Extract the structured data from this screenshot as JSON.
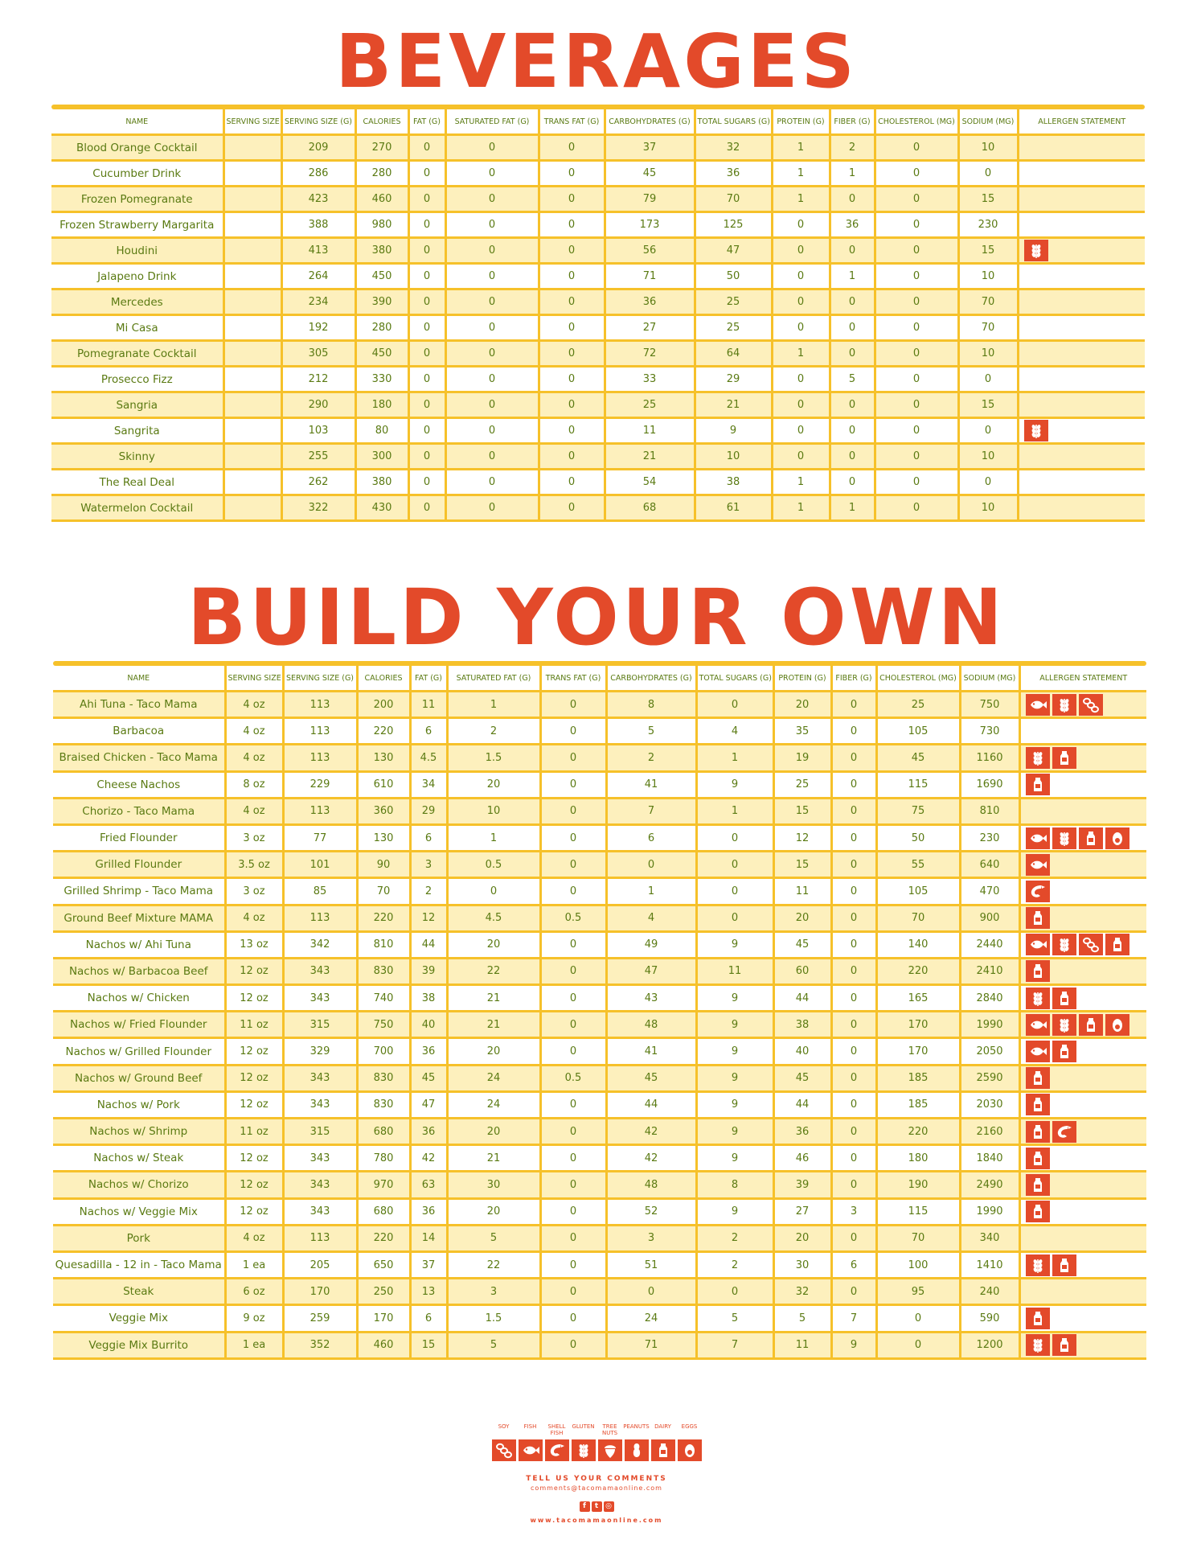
{
  "beverages": {
    "title": "BEVERAGES",
    "headers": [
      "NAME",
      "SERVING SIZE",
      "SERVING SIZE (g)",
      "CALORIES",
      "FAT (g)",
      "SATURATED FAT (g)",
      "TRANS FAT (g)",
      "CARBOHYDRATES (g)",
      "TOTAL SUGARS (g)",
      "PROTEIN (g)",
      "FIBER (g)",
      "CHOLESTEROL (mg)",
      "SODIUM (mg)",
      "ALLERGEN STATEMENT"
    ],
    "rows": [
      {
        "cells": [
          "Blood Orange Cocktail",
          "",
          "209",
          "270",
          "0",
          "0",
          "0",
          "37",
          "32",
          "1",
          "2",
          "0",
          "10"
        ],
        "allergens": []
      },
      {
        "cells": [
          "Cucumber Drink",
          "",
          "286",
          "280",
          "0",
          "0",
          "0",
          "45",
          "36",
          "1",
          "1",
          "0",
          "0"
        ],
        "allergens": []
      },
      {
        "cells": [
          "Frozen Pomegranate",
          "",
          "423",
          "460",
          "0",
          "0",
          "0",
          "79",
          "70",
          "1",
          "0",
          "0",
          "15"
        ],
        "allergens": []
      },
      {
        "cells": [
          "Frozen Strawberry Margarita",
          "",
          "388",
          "980",
          "0",
          "0",
          "0",
          "173",
          "125",
          "0",
          "36",
          "0",
          "230"
        ],
        "allergens": []
      },
      {
        "cells": [
          "Houdini",
          "",
          "413",
          "380",
          "0",
          "0",
          "0",
          "56",
          "47",
          "0",
          "0",
          "0",
          "15"
        ],
        "allergens": [
          "gluten"
        ]
      },
      {
        "cells": [
          "Jalapeno Drink",
          "",
          "264",
          "450",
          "0",
          "0",
          "0",
          "71",
          "50",
          "0",
          "1",
          "0",
          "10"
        ],
        "allergens": []
      },
      {
        "cells": [
          "Mercedes",
          "",
          "234",
          "390",
          "0",
          "0",
          "0",
          "36",
          "25",
          "0",
          "0",
          "0",
          "70"
        ],
        "allergens": []
      },
      {
        "cells": [
          "Mi Casa",
          "",
          "192",
          "280",
          "0",
          "0",
          "0",
          "27",
          "25",
          "0",
          "0",
          "0",
          "70"
        ],
        "allergens": []
      },
      {
        "cells": [
          "Pomegranate Cocktail",
          "",
          "305",
          "450",
          "0",
          "0",
          "0",
          "72",
          "64",
          "1",
          "0",
          "0",
          "10"
        ],
        "allergens": []
      },
      {
        "cells": [
          "Prosecco Fizz",
          "",
          "212",
          "330",
          "0",
          "0",
          "0",
          "33",
          "29",
          "0",
          "5",
          "0",
          "0"
        ],
        "allergens": []
      },
      {
        "cells": [
          "Sangria",
          "",
          "290",
          "180",
          "0",
          "0",
          "0",
          "25",
          "21",
          "0",
          "0",
          "0",
          "15"
        ],
        "allergens": []
      },
      {
        "cells": [
          "Sangrita",
          "",
          "103",
          "80",
          "0",
          "0",
          "0",
          "11",
          "9",
          "0",
          "0",
          "0",
          "0"
        ],
        "allergens": [
          "gluten"
        ]
      },
      {
        "cells": [
          "Skinny",
          "",
          "255",
          "300",
          "0",
          "0",
          "0",
          "21",
          "10",
          "0",
          "0",
          "0",
          "10"
        ],
        "allergens": []
      },
      {
        "cells": [
          "The Real Deal",
          "",
          "262",
          "380",
          "0",
          "0",
          "0",
          "54",
          "38",
          "1",
          "0",
          "0",
          "0"
        ],
        "allergens": []
      },
      {
        "cells": [
          "Watermelon Cocktail",
          "",
          "322",
          "430",
          "0",
          "0",
          "0",
          "68",
          "61",
          "1",
          "1",
          "0",
          "10"
        ],
        "allergens": []
      }
    ]
  },
  "build_your_own": {
    "title": "BUILD YOUR OWN",
    "headers": [
      "NAME",
      "SERVING SIZE",
      "SERVING SIZE (g)",
      "CALORIES",
      "FAT (g)",
      "SATURATED FAT (g)",
      "TRANS FAT (g)",
      "CARBOHYDRATES (g)",
      "TOTAL SUGARS (g)",
      "PROTEIN (g)",
      "FIBER (g)",
      "CHOLESTEROL (mg)",
      "SODIUM (mg)",
      "ALLERGEN STATEMENT"
    ],
    "rows": [
      {
        "cells": [
          "Ahi Tuna - Taco Mama",
          "4 oz",
          "113",
          "200",
          "11",
          "1",
          "0",
          "8",
          "0",
          "20",
          "0",
          "25",
          "750"
        ],
        "allergens": [
          "fish",
          "gluten",
          "soy"
        ]
      },
      {
        "cells": [
          "Barbacoa",
          "4 oz",
          "113",
          "220",
          "6",
          "2",
          "0",
          "5",
          "4",
          "35",
          "0",
          "105",
          "730"
        ],
        "allergens": []
      },
      {
        "cells": [
          "Braised Chicken - Taco Mama",
          "4 oz",
          "113",
          "130",
          "4.5",
          "1.5",
          "0",
          "2",
          "1",
          "19",
          "0",
          "45",
          "1160"
        ],
        "allergens": [
          "gluten",
          "dairy"
        ]
      },
      {
        "cells": [
          "Cheese Nachos",
          "8 oz",
          "229",
          "610",
          "34",
          "20",
          "0",
          "41",
          "9",
          "25",
          "0",
          "115",
          "1690"
        ],
        "allergens": [
          "dairy"
        ]
      },
      {
        "cells": [
          "Chorizo - Taco Mama",
          "4 oz",
          "113",
          "360",
          "29",
          "10",
          "0",
          "7",
          "1",
          "15",
          "0",
          "75",
          "810"
        ],
        "allergens": []
      },
      {
        "cells": [
          "Fried Flounder",
          "3 oz",
          "77",
          "130",
          "6",
          "1",
          "0",
          "6",
          "0",
          "12",
          "0",
          "50",
          "230"
        ],
        "allergens": [
          "fish",
          "gluten",
          "dairy",
          "eggs"
        ]
      },
      {
        "cells": [
          "Grilled Flounder",
          "3.5 oz",
          "101",
          "90",
          "3",
          "0.5",
          "0",
          "0",
          "0",
          "15",
          "0",
          "55",
          "640"
        ],
        "allergens": [
          "fish"
        ]
      },
      {
        "cells": [
          "Grilled Shrimp - Taco Mama",
          "3 oz",
          "85",
          "70",
          "2",
          "0",
          "0",
          "1",
          "0",
          "11",
          "0",
          "105",
          "470"
        ],
        "allergens": [
          "shellfish"
        ]
      },
      {
        "cells": [
          "Ground Beef Mixture MAMA",
          "4 oz",
          "113",
          "220",
          "12",
          "4.5",
          "0.5",
          "4",
          "0",
          "20",
          "0",
          "70",
          "900"
        ],
        "allergens": [
          "dairy"
        ]
      },
      {
        "cells": [
          "Nachos w/ Ahi Tuna",
          "13 oz",
          "342",
          "810",
          "44",
          "20",
          "0",
          "49",
          "9",
          "45",
          "0",
          "140",
          "2440"
        ],
        "allergens": [
          "fish",
          "gluten",
          "soy",
          "dairy"
        ]
      },
      {
        "cells": [
          "Nachos w/ Barbacoa Beef",
          "12 oz",
          "343",
          "830",
          "39",
          "22",
          "0",
          "47",
          "11",
          "60",
          "0",
          "220",
          "2410"
        ],
        "allergens": [
          "dairy"
        ]
      },
      {
        "cells": [
          "Nachos w/ Chicken",
          "12 oz",
          "343",
          "740",
          "38",
          "21",
          "0",
          "43",
          "9",
          "44",
          "0",
          "165",
          "2840"
        ],
        "allergens": [
          "gluten",
          "dairy"
        ]
      },
      {
        "cells": [
          "Nachos w/ Fried Flounder",
          "11 oz",
          "315",
          "750",
          "40",
          "21",
          "0",
          "48",
          "9",
          "38",
          "0",
          "170",
          "1990"
        ],
        "allergens": [
          "fish",
          "gluten",
          "dairy",
          "eggs"
        ]
      },
      {
        "cells": [
          "Nachos w/ Grilled Flounder",
          "12 oz",
          "329",
          "700",
          "36",
          "20",
          "0",
          "41",
          "9",
          "40",
          "0",
          "170",
          "2050"
        ],
        "allergens": [
          "fish",
          "dairy"
        ]
      },
      {
        "cells": [
          "Nachos w/ Ground Beef",
          "12 oz",
          "343",
          "830",
          "45",
          "24",
          "0.5",
          "45",
          "9",
          "45",
          "0",
          "185",
          "2590"
        ],
        "allergens": [
          "dairy"
        ]
      },
      {
        "cells": [
          "Nachos w/ Pork",
          "12 oz",
          "343",
          "830",
          "47",
          "24",
          "0",
          "44",
          "9",
          "44",
          "0",
          "185",
          "2030"
        ],
        "allergens": [
          "dairy"
        ]
      },
      {
        "cells": [
          "Nachos w/ Shrimp",
          "11 oz",
          "315",
          "680",
          "36",
          "20",
          "0",
          "42",
          "9",
          "36",
          "0",
          "220",
          "2160"
        ],
        "allergens": [
          "dairy",
          "shellfish"
        ]
      },
      {
        "cells": [
          "Nachos w/ Steak",
          "12 oz",
          "343",
          "780",
          "42",
          "21",
          "0",
          "42",
          "9",
          "46",
          "0",
          "180",
          "1840"
        ],
        "allergens": [
          "dairy"
        ]
      },
      {
        "cells": [
          "Nachos w/ Chorizo",
          "12 oz",
          "343",
          "970",
          "63",
          "30",
          "0",
          "48",
          "8",
          "39",
          "0",
          "190",
          "2490"
        ],
        "allergens": [
          "dairy"
        ]
      },
      {
        "cells": [
          "Nachos w/ Veggie Mix",
          "12 oz",
          "343",
          "680",
          "36",
          "20",
          "0",
          "52",
          "9",
          "27",
          "3",
          "115",
          "1990"
        ],
        "allergens": [
          "dairy"
        ]
      },
      {
        "cells": [
          "Pork",
          "4 oz",
          "113",
          "220",
          "14",
          "5",
          "0",
          "3",
          "2",
          "20",
          "0",
          "70",
          "340"
        ],
        "allergens": []
      },
      {
        "cells": [
          "Quesadilla - 12 in - Taco Mama",
          "1 ea",
          "205",
          "650",
          "37",
          "22",
          "0",
          "51",
          "2",
          "30",
          "6",
          "100",
          "1410"
        ],
        "allergens": [
          "gluten",
          "dairy"
        ]
      },
      {
        "cells": [
          "Steak",
          "6 oz",
          "170",
          "250",
          "13",
          "3",
          "0",
          "0",
          "0",
          "32",
          "0",
          "95",
          "240"
        ],
        "allergens": []
      },
      {
        "cells": [
          "Veggie Mix",
          "9 oz",
          "259",
          "170",
          "6",
          "1.5",
          "0",
          "24",
          "5",
          "5",
          "7",
          "0",
          "590"
        ],
        "allergens": [
          "dairy"
        ]
      },
      {
        "cells": [
          "Veggie Mix Burrito",
          "1 ea",
          "352",
          "460",
          "15",
          "5",
          "0",
          "71",
          "7",
          "11",
          "9",
          "0",
          "1200"
        ],
        "allergens": [
          "gluten",
          "dairy"
        ]
      }
    ]
  },
  "legend": {
    "items": [
      {
        "key": "soy",
        "label": "SOY"
      },
      {
        "key": "fish",
        "label": "FISH"
      },
      {
        "key": "shellfish",
        "label": "SHELL FISH"
      },
      {
        "key": "gluten",
        "label": "GLUTEN"
      },
      {
        "key": "treenuts",
        "label": "TREE NUTS"
      },
      {
        "key": "peanuts",
        "label": "PEANUTS"
      },
      {
        "key": "dairy",
        "label": "DAIRY"
      },
      {
        "key": "eggs",
        "label": "EGGS"
      }
    ]
  },
  "footer": {
    "tell": "TELL US YOUR COMMENTS",
    "email": "comments@tacomamaonline.com",
    "website": "www.tacomamaonline.com"
  },
  "colors": {
    "accent": "#e34a2a",
    "grid": "#f6c12a",
    "row_alt": "#fdf0bd",
    "text": "#5a7a12"
  }
}
